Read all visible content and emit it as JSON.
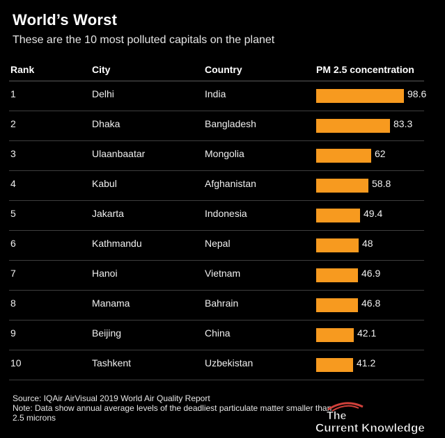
{
  "header": {
    "title": "World’s Worst",
    "subtitle": "These are the 10 most polluted capitals on the planet"
  },
  "table": {
    "columns": [
      "Rank",
      "City",
      "Country",
      "PM 2.5 concentration"
    ]
  },
  "chart_data": {
    "type": "bar",
    "title": "World’s Worst",
    "subtitle": "These are the 10 most polluted capitals on the planet",
    "xlabel": "PM 2.5 concentration",
    "ylabel": "",
    "xlim": [
      0,
      100
    ],
    "bar_color": "#f79a1f",
    "rows": [
      {
        "rank": "1",
        "city": "Delhi",
        "country": "India",
        "value": 98.6
      },
      {
        "rank": "2",
        "city": "Dhaka",
        "country": "Bangladesh",
        "value": 83.3
      },
      {
        "rank": "3",
        "city": "Ulaanbaatar",
        "country": "Mongolia",
        "value": 62
      },
      {
        "rank": "4",
        "city": "Kabul",
        "country": "Afghanistan",
        "value": 58.8
      },
      {
        "rank": "5",
        "city": "Jakarta",
        "country": "Indonesia",
        "value": 49.4
      },
      {
        "rank": "6",
        "city": "Kathmandu",
        "country": "Nepal",
        "value": 48
      },
      {
        "rank": "7",
        "city": "Hanoi",
        "country": "Vietnam",
        "value": 46.9
      },
      {
        "rank": "8",
        "city": "Manama",
        "country": "Bahrain",
        "value": 46.8
      },
      {
        "rank": "9",
        "city": "Beijing",
        "country": "China",
        "value": 42.1
      },
      {
        "rank": "10",
        "city": "Tashkent",
        "country": "Uzbekistan",
        "value": 41.2
      }
    ]
  },
  "footer": {
    "source": "Source: IQAir AirVisual 2019 World Air Quality Report",
    "note": "Note: Data show annual average levels of the deadliest particulate matter smaller than 2.5 microns"
  },
  "watermark": {
    "line1": "The",
    "line2": "Current Knowledge"
  },
  "colors": {
    "background": "#000000",
    "bar": "#f79a1f",
    "text": "#ffffff"
  }
}
